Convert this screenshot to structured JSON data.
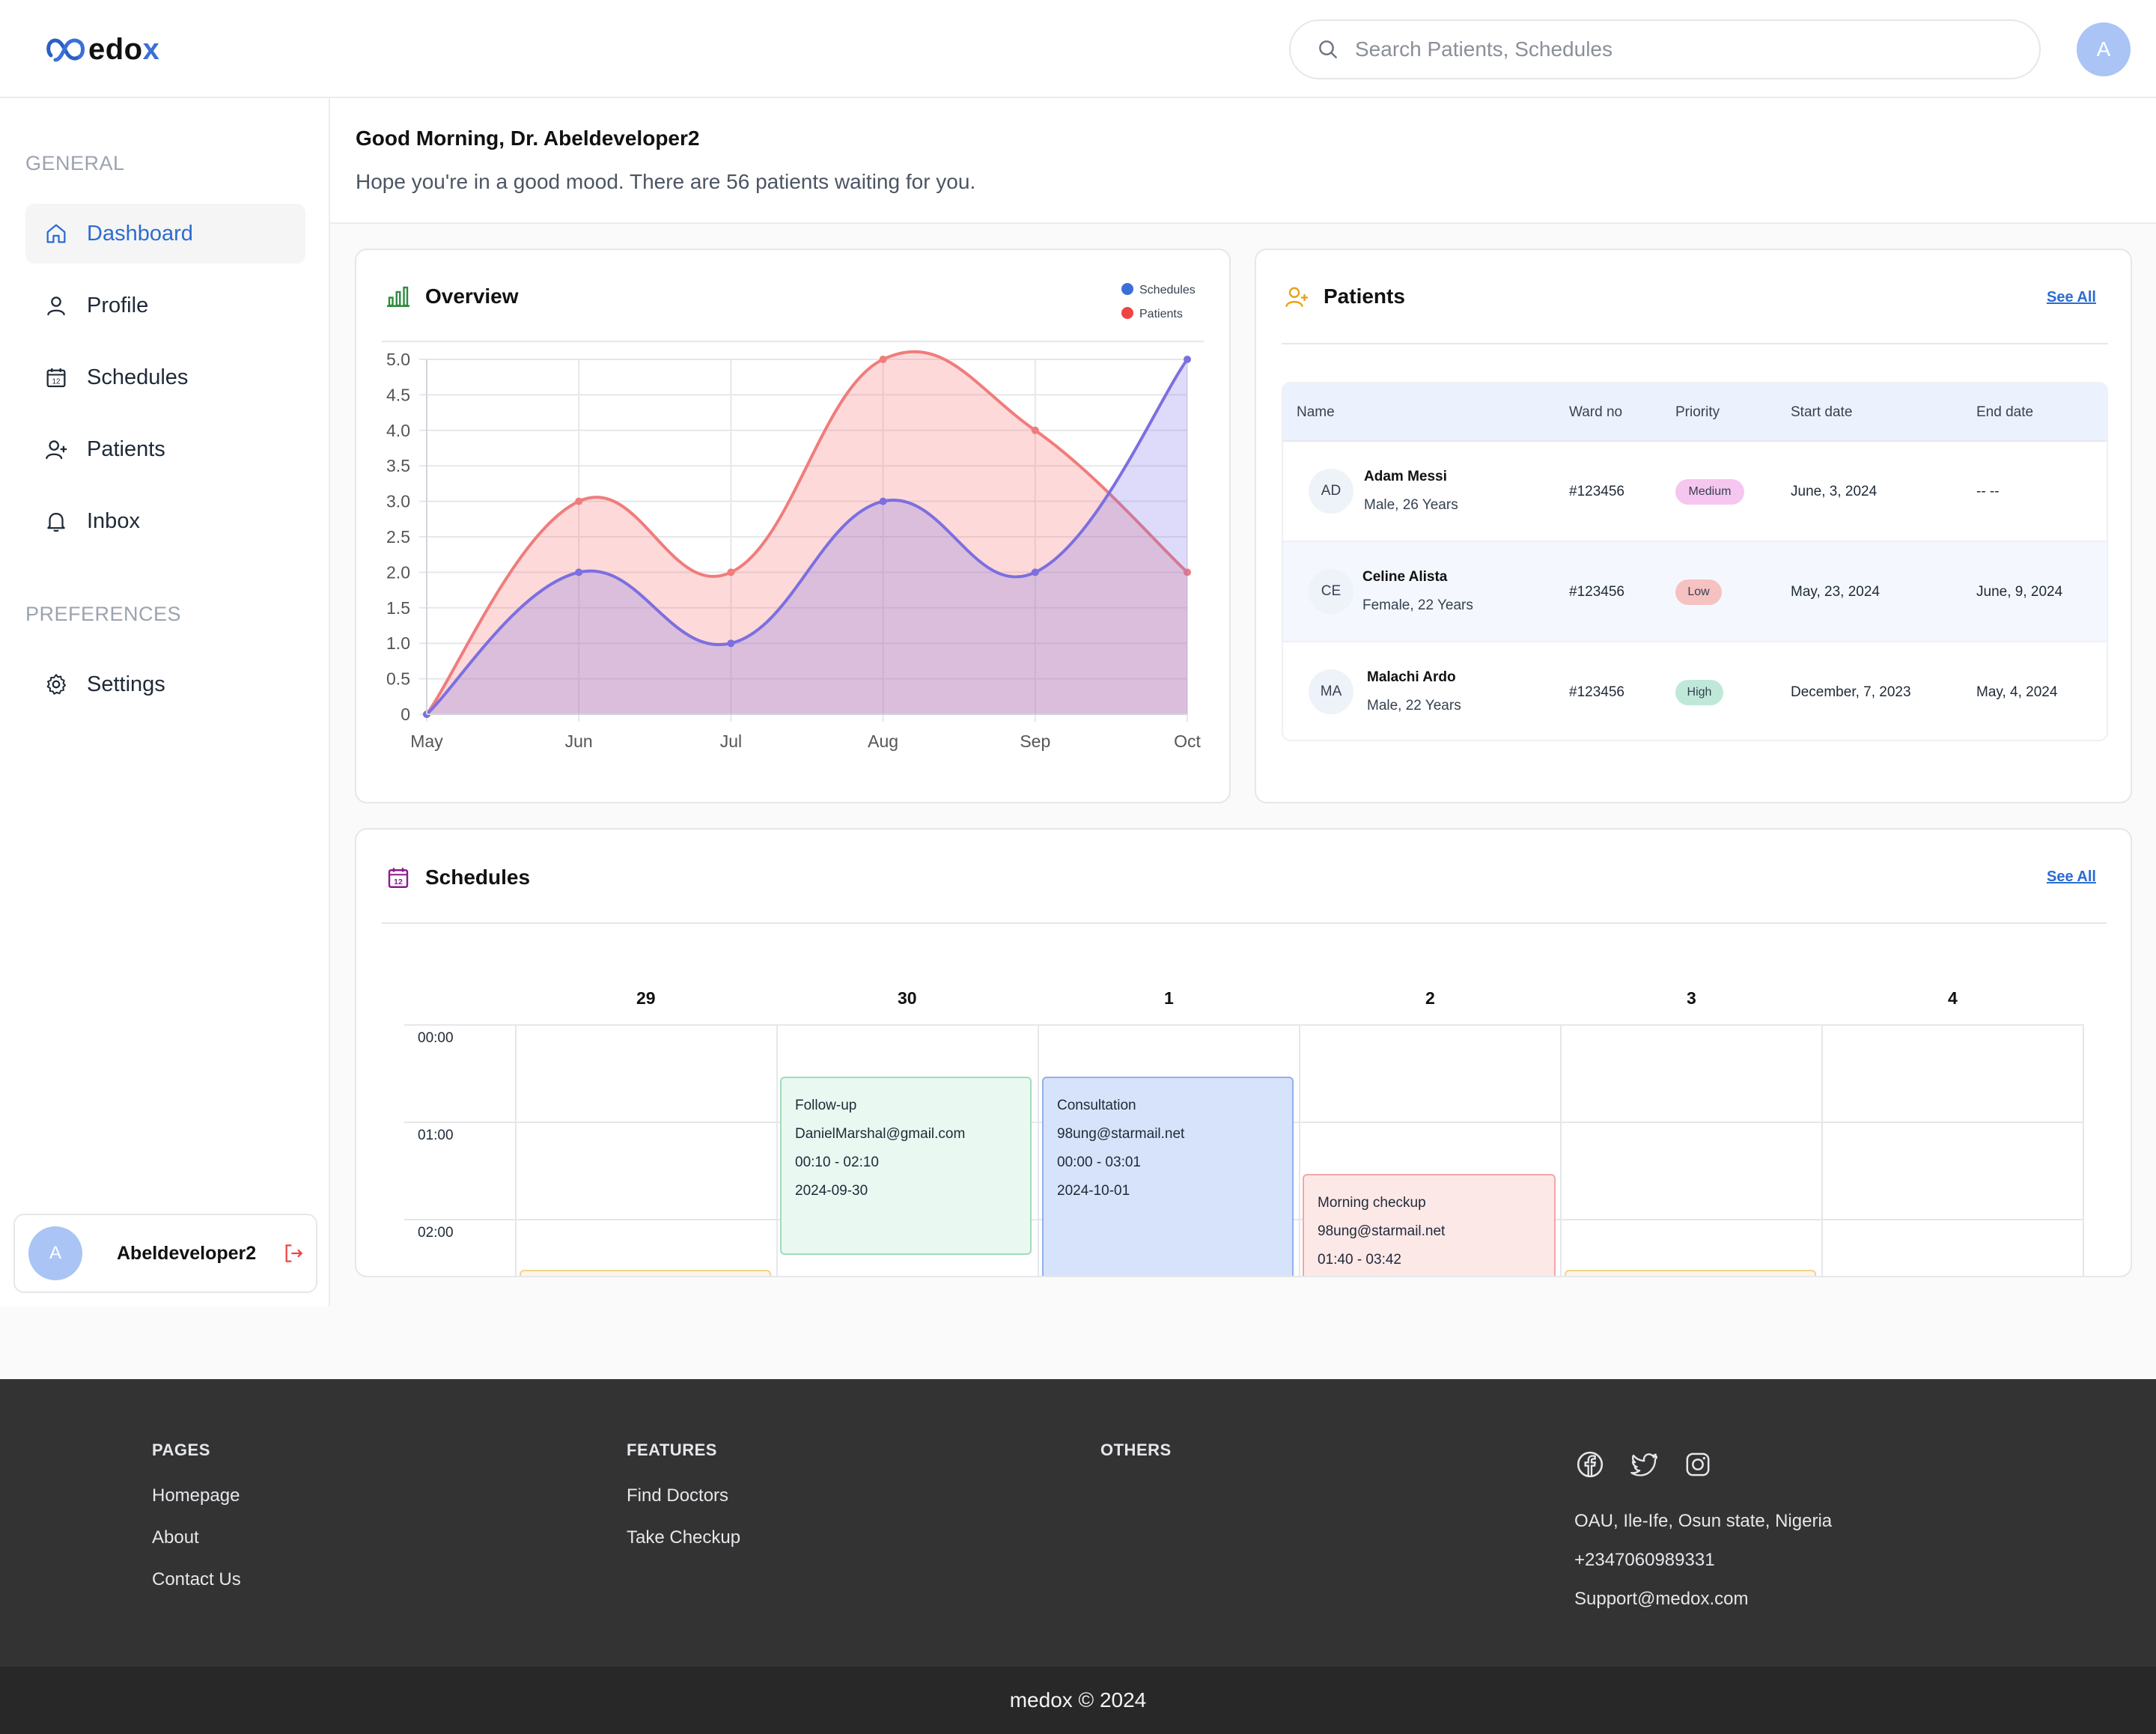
{
  "header": {
    "logo_main": "edox",
    "logo_accent": "x",
    "search_placeholder": "Search Patients, Schedules",
    "avatar_initial": "A"
  },
  "sidebar": {
    "general_label": "GENERAL",
    "preferences_label": "PREFERENCES",
    "items": [
      {
        "label": "Dashboard",
        "icon": "home-icon",
        "active": true
      },
      {
        "label": "Profile",
        "icon": "user-icon"
      },
      {
        "label": "Schedules",
        "icon": "calendar-icon"
      },
      {
        "label": "Patients",
        "icon": "user-plus-icon"
      },
      {
        "label": "Inbox",
        "icon": "bell-icon"
      }
    ],
    "settings_label": "Settings",
    "user": {
      "initial": "A",
      "name": "Abeldeveloper2"
    }
  },
  "greeting": {
    "title": "Good Morning, Dr. Abeldeveloper2",
    "subtitle": "Hope you're in a good mood. There are 56 patients waiting for you."
  },
  "overview": {
    "title": "Overview",
    "legend": [
      {
        "name": "Schedules",
        "color": "#3b6fd8"
      },
      {
        "name": "Patients",
        "color": "#ef4444"
      }
    ]
  },
  "chart_data": {
    "type": "area",
    "categories": [
      "May",
      "Jun",
      "Jul",
      "Aug",
      "Sep",
      "Oct"
    ],
    "ylim": [
      0,
      5
    ],
    "yticks": [
      "0",
      "0.5",
      "1.0",
      "1.5",
      "2.0",
      "2.5",
      "3.0",
      "3.5",
      "4.0",
      "4.5",
      "5.0"
    ],
    "grid": true,
    "legend_position": "top-right",
    "series": [
      {
        "name": "Schedules",
        "values": [
          0,
          2,
          1,
          3,
          2,
          5
        ],
        "color": "#7c6fe0"
      },
      {
        "name": "Patients",
        "values": [
          0,
          3,
          2,
          5,
          4,
          2
        ],
        "color": "#f07c7c"
      }
    ]
  },
  "patients": {
    "title": "Patients",
    "see_all": "See All",
    "columns": [
      "Name",
      "Ward no",
      "Priority",
      "Start date",
      "End date"
    ],
    "rows": [
      {
        "initials": "AD",
        "name": "Adam Messi",
        "meta": "Male, 26 Years",
        "ward": "#123456",
        "priority": "Medium",
        "priority_color": "#f5c6f0",
        "start": "June, 3, 2024",
        "end": "-- --"
      },
      {
        "initials": "CE",
        "name": "Celine Alista",
        "meta": "Female, 22 Years",
        "ward": "#123456",
        "priority": "Low",
        "priority_color": "#f6c1c1",
        "start": "May, 23, 2024",
        "end": "June, 9, 2024"
      },
      {
        "initials": "MA",
        "name": "Malachi Ardo",
        "meta": "Male, 22 Years",
        "ward": "#123456",
        "priority": "High",
        "priority_color": "#bfe8d8",
        "start": "December, 7, 2023",
        "end": "May, 4, 2024"
      }
    ]
  },
  "schedules": {
    "title": "Schedules",
    "see_all": "See All",
    "days": [
      "29",
      "30",
      "1",
      "2",
      "3",
      "4"
    ],
    "times": [
      "00:00",
      "01:00",
      "02:00"
    ],
    "events": [
      {
        "title": "Follow-up",
        "email": "DanielMarshal@gmail.com",
        "time": "00:10 - 02:10",
        "date": "2024-09-30",
        "bg": "#e9f9f1",
        "border": "#9fdcba"
      },
      {
        "title": "Consultation",
        "email": "98ung@starmail.net",
        "time": "00:00 - 03:01",
        "date": "2024-10-01",
        "bg": "#d7e3fa",
        "border": "#8fb0ec"
      },
      {
        "title": "Morning checkup",
        "email": "98ung@starmail.net",
        "time": "01:40 - 03:42",
        "bg": "#fde8e8",
        "border": "#f2a7a7"
      }
    ]
  },
  "footer": {
    "pages_head": "PAGES",
    "pages": [
      "Homepage",
      "About",
      "Contact Us"
    ],
    "features_head": "FEATURES",
    "features": [
      "Find Doctors",
      "Take Checkup"
    ],
    "others_head": "OTHERS",
    "address": "OAU, Ile-Ife, Osun state, Nigeria",
    "phone": "+2347060989331",
    "email": "Support@medox.com",
    "copyright": "medox © 2024"
  }
}
